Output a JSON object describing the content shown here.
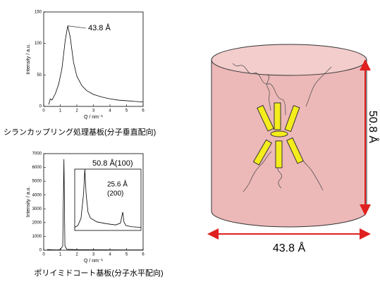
{
  "chart_data": [
    {
      "type": "line",
      "y_label": "Intensity / a.u.",
      "x_label": "Q / nm⁻¹",
      "annotations": [
        "43.8 Å"
      ],
      "caption": "シランカップリング処理基板(分子垂直配向)",
      "xlim": [
        0,
        6
      ],
      "xticks": [
        0,
        1,
        2,
        3,
        4,
        5,
        6
      ],
      "ylim": [
        0,
        150
      ],
      "yticks": [
        0,
        50,
        100,
        150
      ],
      "color": "#000000",
      "x": [
        0.3,
        0.4,
        0.5,
        0.7,
        0.9,
        1.1,
        1.3,
        1.45,
        1.6,
        1.8,
        2.0,
        2.3,
        2.6,
        3.0,
        3.5,
        4.0,
        4.5,
        5.0,
        5.5,
        6.0
      ],
      "values": [
        3,
        12,
        10,
        20,
        35,
        60,
        105,
        128,
        110,
        70,
        48,
        33,
        25,
        19,
        15,
        12,
        10,
        9,
        8,
        7
      ]
    },
    {
      "type": "line",
      "y_label": "Intensity / a.u.",
      "x_label": "Q / nm⁻¹",
      "caption": "ポリイミドコート基板(分子水平配向)",
      "xlim": [
        0,
        6
      ],
      "xticks": [
        0,
        1,
        2,
        3,
        4,
        5,
        6
      ],
      "ylim": [
        0,
        7000
      ],
      "yticks": [
        0,
        1000,
        2000,
        3000,
        4000,
        5000,
        6000,
        7000
      ],
      "color": "#000000",
      "x": [
        0.2,
        0.5,
        0.8,
        1.0,
        1.15,
        1.22,
        1.28,
        1.4,
        2.0,
        3.0,
        4.0,
        5.0,
        6.0
      ],
      "values": [
        50,
        30,
        20,
        40,
        300,
        6600,
        300,
        60,
        40,
        30,
        25,
        20,
        20
      ]
    },
    {
      "type": "line",
      "annotations": [
        "50.8 Å(100)",
        "25.6 Å",
        "(200)"
      ],
      "xlim": [
        0.9,
        3.0
      ],
      "ylim": [
        0,
        100
      ],
      "color": "#000000",
      "x": [
        0.9,
        1.0,
        1.1,
        1.18,
        1.22,
        1.26,
        1.32,
        1.4,
        1.6,
        1.9,
        2.2,
        2.35,
        2.42,
        2.46,
        2.52,
        2.7,
        3.0
      ],
      "values": [
        5,
        8,
        20,
        60,
        100,
        60,
        30,
        20,
        14,
        11,
        9,
        12,
        30,
        14,
        8,
        6,
        5
      ]
    }
  ],
  "diagram": {
    "height_label": "50.8 Å",
    "width_label": "43.8 Å"
  }
}
